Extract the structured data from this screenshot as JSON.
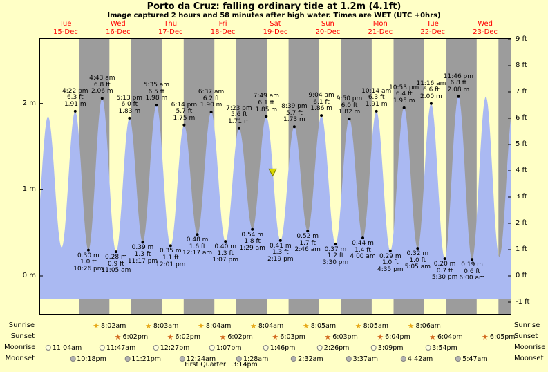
{
  "header": {
    "title": "Porto da Cruz: falling  ordinary tide at 1.2m (4.1ft)",
    "subtitle": "Image captured 2 hours and 58 minutes after high water. Times are WET (UTC +0hrs)"
  },
  "chart_data": {
    "type": "area",
    "x_axis": {
      "start": "Tue 15-Dec 00:00",
      "hours_span": 216,
      "days": [
        {
          "name": "Tue",
          "date": "15-Dec"
        },
        {
          "name": "Wed",
          "date": "16-Dec"
        },
        {
          "name": "Thu",
          "date": "17-Dec"
        },
        {
          "name": "Fri",
          "date": "18-Dec"
        },
        {
          "name": "Sat",
          "date": "19-Dec"
        },
        {
          "name": "Sun",
          "date": "20-Dec"
        },
        {
          "name": "Mon",
          "date": "21-Dec"
        },
        {
          "name": "Tue",
          "date": "22-Dec"
        },
        {
          "name": "Wed",
          "date": "23-Dec"
        }
      ]
    },
    "y_axis": {
      "left_ticks": [
        {
          "m": 2,
          "label": "2 m"
        },
        {
          "m": 1,
          "label": "1 m"
        },
        {
          "m": 0,
          "label": "0 m"
        }
      ],
      "right_ticks": [
        {
          "ft": 9,
          "label": "9 ft"
        },
        {
          "ft": 8,
          "label": "8 ft"
        },
        {
          "ft": 7,
          "label": "7 ft"
        },
        {
          "ft": 6,
          "label": "6 ft"
        },
        {
          "ft": 5,
          "label": "5 ft"
        },
        {
          "ft": 4,
          "label": "4 ft"
        },
        {
          "ft": 3,
          "label": "3 ft"
        },
        {
          "ft": 2,
          "label": "2 ft"
        },
        {
          "ft": 1,
          "label": "1 ft"
        },
        {
          "ft": 0,
          "label": "0 ft"
        },
        {
          "ft": -1,
          "label": "-1 ft"
        }
      ]
    },
    "night_bands_hours": [
      [
        18.03,
        32.03
      ],
      [
        42.03,
        56.05
      ],
      [
        66.03,
        80.07
      ],
      [
        90.05,
        104.07
      ],
      [
        114.05,
        128.08
      ],
      [
        138.07,
        152.08
      ],
      [
        162.07,
        176.1
      ],
      [
        186.07,
        200.1
      ],
      [
        210.08,
        216
      ]
    ],
    "tide_events": [
      {
        "t": -2.3,
        "m": 0.3,
        "type": "low"
      },
      {
        "t": 3.95,
        "m": 1.85,
        "type": "high"
      },
      {
        "t": 10.17,
        "m": 0.33,
        "type": "low"
      },
      {
        "t": 16.37,
        "m": 1.91,
        "type": "high",
        "time_label": "4:22 pm",
        "ft_label": "6.3 ft",
        "m_label": "1.91 m"
      },
      {
        "t": 22.43,
        "m": 0.3,
        "type": "low",
        "time_label": "10:26 pm",
        "ft_label": "1.0 ft",
        "m_label": "0.30 m"
      },
      {
        "t": 28.72,
        "m": 2.06,
        "type": "high",
        "time_label": "4:43 am",
        "ft_label": "6.8 ft",
        "m_label": "2.06 m"
      },
      {
        "t": 35.08,
        "m": 0.28,
        "type": "low",
        "time_label": "11:05 am",
        "ft_label": "0.9 ft",
        "m_label": "0.28 m"
      },
      {
        "t": 41.22,
        "m": 1.83,
        "type": "high",
        "time_label": "5:13 pm",
        "ft_label": "6.0 ft",
        "m_label": "1.83 m"
      },
      {
        "t": 47.28,
        "m": 0.39,
        "type": "low",
        "time_label": "11:17 pm",
        "ft_label": "1.3 ft",
        "m_label": "0.39 m"
      },
      {
        "t": 53.58,
        "m": 1.98,
        "type": "high",
        "time_label": "5:35 am",
        "ft_label": "6.5 ft",
        "m_label": "1.98 m"
      },
      {
        "t": 60.02,
        "m": 0.35,
        "type": "low",
        "time_label": "12:01 pm",
        "ft_label": "1.1 ft",
        "m_label": "0.35 m"
      },
      {
        "t": 66.23,
        "m": 1.75,
        "type": "high",
        "time_label": "6:14 pm",
        "ft_label": "5.7 ft",
        "m_label": "1.75 m"
      },
      {
        "t": 72.28,
        "m": 0.48,
        "type": "low",
        "time_label": "12:17 am",
        "ft_label": "1.6 ft",
        "m_label": "0.48 m"
      },
      {
        "t": 78.62,
        "m": 1.9,
        "type": "high",
        "time_label": "6:37 am",
        "ft_label": "6.2 ft",
        "m_label": "1.90 m"
      },
      {
        "t": 85.12,
        "m": 0.4,
        "type": "low",
        "time_label": "1:07 pm",
        "ft_label": "1.3 ft",
        "m_label": "0.40 m"
      },
      {
        "t": 91.38,
        "m": 1.71,
        "type": "high",
        "time_label": "7:23 pm",
        "ft_label": "5.6 ft",
        "m_label": "1.71 m"
      },
      {
        "t": 97.48,
        "m": 0.54,
        "type": "low",
        "time_label": "1:29 am",
        "ft_label": "1.8 ft",
        "m_label": "0.54 m"
      },
      {
        "t": 103.82,
        "m": 1.85,
        "type": "high",
        "time_label": "7:49 am",
        "ft_label": "6.1 ft",
        "m_label": "1.85 m"
      },
      {
        "t": 110.32,
        "m": 0.41,
        "type": "low",
        "time_label": "2:19 pm",
        "ft_label": "1.3 ft",
        "m_label": "0.41 m"
      },
      {
        "t": 116.65,
        "m": 1.73,
        "type": "high",
        "time_label": "8:39 pm",
        "ft_label": "5.7 ft",
        "m_label": "1.73 m"
      },
      {
        "t": 122.77,
        "m": 0.52,
        "type": "low",
        "time_label": "2:46 am",
        "ft_label": "1.7 ft",
        "m_label": "0.52 m"
      },
      {
        "t": 129.07,
        "m": 1.86,
        "type": "high",
        "time_label": "9:04 am",
        "ft_label": "6.1 ft",
        "m_label": "1.86 m"
      },
      {
        "t": 135.5,
        "m": 0.37,
        "type": "low",
        "time_label": "3:30 pm",
        "ft_label": "1.2 ft",
        "m_label": "0.37 m"
      },
      {
        "t": 141.83,
        "m": 1.82,
        "type": "high",
        "time_label": "9:50 pm",
        "ft_label": "6.0 ft",
        "m_label": "1.82 m"
      },
      {
        "t": 148.0,
        "m": 0.44,
        "type": "low",
        "time_label": "4:00 am",
        "ft_label": "1.4 ft",
        "m_label": "0.44 m"
      },
      {
        "t": 154.23,
        "m": 1.91,
        "type": "high",
        "time_label": "10:14 am",
        "ft_label": "6.3 ft",
        "m_label": "1.91 m"
      },
      {
        "t": 160.58,
        "m": 0.29,
        "type": "low",
        "time_label": "4:35 pm",
        "ft_label": "1.0 ft",
        "m_label": "0.29 m"
      },
      {
        "t": 166.88,
        "m": 1.95,
        "type": "high",
        "time_label": "10:53 pm",
        "ft_label": "6.4 ft",
        "m_label": "1.95 m"
      },
      {
        "t": 173.08,
        "m": 0.32,
        "type": "low",
        "time_label": "5:05 am",
        "ft_label": "1.0 ft",
        "m_label": "0.32 m"
      },
      {
        "t": 179.27,
        "m": 2.0,
        "type": "high",
        "time_label": "11:16 am",
        "ft_label": "6.6 ft",
        "m_label": "2.00 m"
      },
      {
        "t": 185.5,
        "m": 0.2,
        "type": "low",
        "time_label": "5:30 pm",
        "ft_label": "0.7 ft",
        "m_label": "0.20 m"
      },
      {
        "t": 191.77,
        "m": 2.08,
        "type": "high",
        "time_label": "11:46 pm",
        "ft_label": "6.8 ft",
        "m_label": "2.08 m"
      },
      {
        "t": 198.0,
        "m": 0.19,
        "type": "low",
        "time_label": "6:00 am",
        "ft_label": "0.6 ft",
        "m_label": "0.19 m"
      },
      {
        "t": 204.3,
        "m": 2.08,
        "type": "high"
      },
      {
        "t": 210.5,
        "m": 0.22,
        "type": "low"
      },
      {
        "t": 216.8,
        "m": 1.95,
        "type": "high"
      }
    ],
    "current_marker": {
      "t": 106.78,
      "m": 1.2
    },
    "colors": {
      "background": "#ffffc6",
      "night": "#9c9c9c",
      "tide": "#aab9f2",
      "day_label": "#ff0000",
      "marker": "#d8d800",
      "marker_border": "#7a7a00",
      "sunrise_icon": "#e6a817",
      "sunset_icon": "#d2691e",
      "moonrise_icon": "#ffffe0",
      "moonset_icon": "#b3b3b3"
    }
  },
  "astro": {
    "rows": [
      {
        "name": "Sunrise",
        "icon": "sunrise",
        "items": [
          {
            "t": 32.03,
            "label": "8:02am"
          },
          {
            "t": 56.05,
            "label": "8:03am"
          },
          {
            "t": 80.07,
            "label": "8:04am"
          },
          {
            "t": 104.07,
            "label": "8:04am"
          },
          {
            "t": 128.08,
            "label": "8:05am"
          },
          {
            "t": 152.08,
            "label": "8:05am"
          },
          {
            "t": 176.1,
            "label": "8:06am"
          }
        ]
      },
      {
        "name": "Sunset",
        "icon": "sunset",
        "items": [
          {
            "t": 42.03,
            "label": "6:02pm"
          },
          {
            "t": 66.03,
            "label": "6:02pm"
          },
          {
            "t": 90.05,
            "label": "6:02pm"
          },
          {
            "t": 114.05,
            "label": "6:03pm"
          },
          {
            "t": 138.07,
            "label": "6:03pm"
          },
          {
            "t": 162.07,
            "label": "6:04pm"
          },
          {
            "t": 186.07,
            "label": "6:04pm"
          },
          {
            "t": 210.08,
            "label": "6:05pm"
          }
        ]
      },
      {
        "name": "Moonrise",
        "icon": "moonrise",
        "items": [
          {
            "t": 11.07,
            "label": "11:04am"
          },
          {
            "t": 35.78,
            "label": "11:47am"
          },
          {
            "t": 60.45,
            "label": "12:27pm"
          },
          {
            "t": 85.12,
            "label": "1:07pm"
          },
          {
            "t": 109.77,
            "label": "1:46pm"
          },
          {
            "t": 134.43,
            "label": "2:26pm"
          },
          {
            "t": 159.15,
            "label": "3:09pm"
          },
          {
            "t": 183.9,
            "label": "3:54pm"
          }
        ]
      },
      {
        "name": "Moonset",
        "icon": "moonset",
        "items": [
          {
            "t": 22.3,
            "label": "10:18pm"
          },
          {
            "t": 47.35,
            "label": "11:21pm"
          },
          {
            "t": 72.4,
            "label": "12:24am"
          },
          {
            "t": 97.47,
            "label": "1:28am"
          },
          {
            "t": 122.53,
            "label": "2:32am"
          },
          {
            "t": 147.62,
            "label": "3:37am"
          },
          {
            "t": 172.7,
            "label": "4:42am"
          },
          {
            "t": 197.78,
            "label": "5:47am"
          }
        ]
      }
    ],
    "moon_phase": {
      "label": "First Quarter | 3:14pm",
      "t": 87.23
    }
  }
}
